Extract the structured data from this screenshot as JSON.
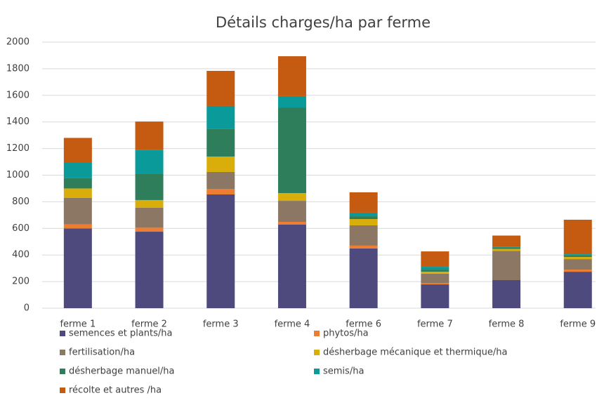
{
  "chart_data": {
    "type": "stacked_bar",
    "title": "Détails charges/ha par ferme",
    "categories": [
      "ferme 1",
      "ferme 2",
      "ferme 3",
      "ferme 4",
      "ferme 6",
      "ferme 7",
      "ferme 8",
      "ferme 9"
    ],
    "series": [
      {
        "name": "semences et plants/ha",
        "color": "#4e4a7e",
        "values": [
          600,
          575,
          855,
          628,
          449,
          179,
          211,
          274
        ]
      },
      {
        "name": "phytos/ha",
        "color": "#ed7d31",
        "values": [
          30,
          30,
          42,
          21,
          21,
          11,
          0,
          16
        ]
      },
      {
        "name": "fertilisation/ha",
        "color": "#8b7763",
        "values": [
          200,
          150,
          127,
          158,
          153,
          69,
          220,
          79
        ]
      },
      {
        "name": "désherbage mécanique et thermique/ha",
        "color": "#d9ae0a",
        "values": [
          70,
          58,
          116,
          58,
          47,
          15,
          15,
          16
        ]
      },
      {
        "name": "désherbage manuel/ha",
        "color": "#2e7d5b",
        "values": [
          80,
          195,
          206,
          644,
          21,
          16,
          10,
          11
        ]
      },
      {
        "name": "semis/ha",
        "color": "#0a9a9a",
        "values": [
          115,
          180,
          174,
          85,
          27,
          21,
          5,
          10
        ]
      },
      {
        "name": "récolte et autres /ha",
        "color": "#c55a11",
        "values": [
          185,
          215,
          264,
          300,
          153,
          116,
          85,
          259
        ]
      }
    ],
    "ylim": [
      0,
      2000
    ],
    "yticks": [
      0,
      200,
      400,
      600,
      800,
      1000,
      1200,
      1400,
      1600,
      1800,
      2000
    ],
    "grid": true,
    "legend": "bottom"
  }
}
